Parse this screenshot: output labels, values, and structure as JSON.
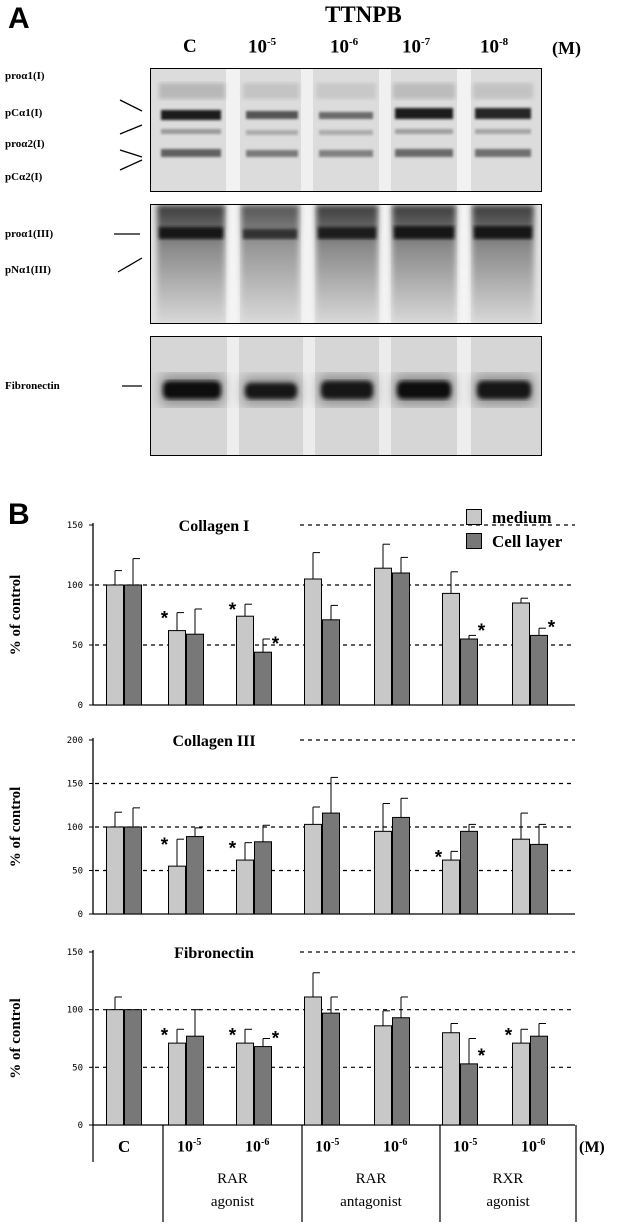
{
  "panel_a": {
    "letter": "A",
    "compound": "TTNPB",
    "lanes": [
      "C",
      "10",
      "10",
      "10",
      "10"
    ],
    "lane_exponents": [
      "",
      "-5",
      "-6",
      "-7",
      "-8"
    ],
    "unit": "(M)",
    "blot1_labels": [
      "proα1(I)",
      "pCα1(I)",
      "proα2(I)",
      "pCα2(I)"
    ],
    "blot2_labels": [
      "proα1(III)",
      "pNα1(III)"
    ],
    "blot3_labels": [
      "Fibronectin"
    ]
  },
  "panel_b": {
    "letter": "B",
    "legend": [
      "medium",
      "Cell layer"
    ],
    "colors": {
      "medium": "#c8c8c8",
      "cell_layer": "#787878"
    },
    "x_unit": "(M)",
    "x_ticks": [
      {
        "base": "C",
        "exp": ""
      },
      {
        "base": "10",
        "exp": "-5"
      },
      {
        "base": "10",
        "exp": "-6"
      },
      {
        "base": "10",
        "exp": "-5"
      },
      {
        "base": "10",
        "exp": "-6"
      },
      {
        "base": "10",
        "exp": "-5"
      },
      {
        "base": "10",
        "exp": "-6"
      }
    ],
    "groups": [
      {
        "line1": "RAR",
        "line2": "agonist"
      },
      {
        "line1": "RAR",
        "line2": "antagonist"
      },
      {
        "line1": "RXR",
        "line2": "agonist"
      }
    ]
  },
  "chart_data": [
    {
      "type": "bar",
      "title": "Collagen I",
      "ylabel": "% of control",
      "ylim": [
        0,
        150
      ],
      "yticks": [
        0,
        50,
        100,
        150
      ],
      "categories": [
        "C",
        "10-5",
        "10-6",
        "10-5",
        "10-6",
        "10-5",
        "10-6"
      ],
      "series": [
        {
          "name": "medium",
          "values": [
            100,
            62,
            74,
            105,
            114,
            93,
            85
          ],
          "errors": [
            12,
            15,
            10,
            22,
            20,
            18,
            4
          ]
        },
        {
          "name": "Cell layer",
          "values": [
            100,
            59,
            44,
            71,
            110,
            55,
            58
          ],
          "errors": [
            22,
            21,
            11,
            12,
            13,
            3,
            6
          ]
        }
      ],
      "significant": {
        "medium": [
          1,
          2
        ],
        "Cell layer": [
          2,
          5,
          6
        ]
      }
    },
    {
      "type": "bar",
      "title": "Collagen III",
      "ylabel": "% of control",
      "ylim": [
        0,
        200
      ],
      "yticks": [
        0,
        50,
        100,
        150,
        200
      ],
      "categories": [
        "C",
        "10-5",
        "10-6",
        "10-5",
        "10-6",
        "10-5",
        "10-6"
      ],
      "series": [
        {
          "name": "medium",
          "values": [
            100,
            55,
            62,
            103,
            95,
            62,
            86
          ],
          "errors": [
            17,
            31,
            20,
            20,
            32,
            10,
            30
          ]
        },
        {
          "name": "Cell layer",
          "values": [
            100,
            89,
            83,
            116,
            111,
            95,
            80
          ],
          "errors": [
            22,
            10,
            19,
            41,
            22,
            8,
            23
          ]
        }
      ],
      "significant": {
        "medium": [
          1,
          2,
          5
        ],
        "Cell layer": []
      }
    },
    {
      "type": "bar",
      "title": "Fibronectin",
      "ylabel": "% of control",
      "ylim": [
        0,
        150
      ],
      "yticks": [
        0,
        50,
        100,
        150
      ],
      "categories": [
        "C",
        "10-5",
        "10-6",
        "10-5",
        "10-6",
        "10-5",
        "10-6"
      ],
      "series": [
        {
          "name": "medium",
          "values": [
            100,
            71,
            71,
            111,
            86,
            80,
            71
          ],
          "errors": [
            11,
            12,
            12,
            21,
            13,
            8,
            12
          ]
        },
        {
          "name": "Cell layer",
          "values": [
            100,
            77,
            68,
            97,
            93,
            53,
            77
          ],
          "errors": [
            0,
            23,
            7,
            14,
            18,
            22,
            11
          ]
        }
      ],
      "significant": {
        "medium": [
          1,
          2,
          6
        ],
        "Cell layer": [
          2,
          5
        ]
      }
    }
  ]
}
